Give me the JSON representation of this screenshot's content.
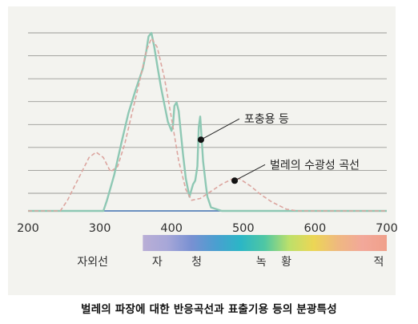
{
  "caption": "벌레의 파장에 대한 반응곡선과 표출기용 등의 분광특성",
  "chart_data": {
    "type": "line",
    "xlabel": "",
    "ylabel": "",
    "xlim": [
      200,
      700
    ],
    "ylim": [
      0,
      100
    ],
    "x_ticks": [
      200,
      300,
      400,
      500,
      600,
      700
    ],
    "x_tick_labels": [
      "200",
      "300",
      "400",
      "500",
      "600",
      "700"
    ],
    "grid": "horizontal",
    "gridline_count": 8,
    "series": [
      {
        "name": "포충용 등",
        "style": "solid",
        "color": "#8ec8b4",
        "x": [
          200,
          305,
          310,
          320,
          330,
          340,
          350,
          360,
          365,
          368,
          372,
          376,
          380,
          385,
          390,
          395,
          400,
          402,
          404,
          407,
          410,
          413,
          416,
          420,
          425,
          430,
          433,
          436,
          438,
          440,
          442,
          444,
          446,
          448,
          450,
          455,
          470,
          700
        ],
        "y": [
          0,
          0,
          6,
          20,
          38,
          55,
          68,
          80,
          90,
          98,
          100,
          92,
          82,
          70,
          60,
          50,
          45,
          48,
          59,
          61,
          56,
          44,
          32,
          18,
          8,
          15,
          17,
          25,
          47,
          53,
          41,
          28,
          21,
          14,
          8,
          2,
          0,
          0
        ]
      },
      {
        "name": "벌레의 수광성 곡선",
        "style": "dashed",
        "color": "#dca6a0",
        "x": [
          200,
          245,
          255,
          265,
          275,
          285,
          295,
          305,
          315,
          325,
          335,
          345,
          355,
          365,
          372,
          380,
          390,
          400,
          410,
          420,
          428,
          440,
          455,
          470,
          485,
          495,
          510,
          525,
          540,
          560,
          575,
          600,
          700
        ],
        "y": [
          0,
          0,
          6,
          14,
          22,
          30,
          33,
          30,
          22,
          25,
          38,
          55,
          72,
          90,
          97,
          92,
          75,
          52,
          28,
          12,
          6,
          7,
          11,
          15,
          18,
          18,
          14,
          9,
          5,
          1,
          0,
          0,
          0
        ]
      }
    ],
    "annotations": [
      {
        "text": "포충용 등",
        "series": 0,
        "x": 441,
        "y": 40
      },
      {
        "text": "벌레의 수광성 곡선",
        "series": 1,
        "x": 488,
        "y": 17
      }
    ],
    "spectrum_band": {
      "range": [
        360,
        700
      ],
      "label_row": [
        {
          "text": "자외선",
          "x": 290
        },
        {
          "text": "자",
          "x": 380
        },
        {
          "text": "청",
          "x": 435
        },
        {
          "text": "녹",
          "x": 525
        },
        {
          "text": "황",
          "x": 560
        },
        {
          "text": "적",
          "x": 700
        }
      ],
      "colors": [
        "#b9aed6",
        "#a7a7d8",
        "#7890d2",
        "#4a9fd0",
        "#2bb6c6",
        "#4fc7a3",
        "#bde06a",
        "#ecd655",
        "#efb880",
        "#f2a89a",
        "#f0a08a"
      ]
    }
  }
}
